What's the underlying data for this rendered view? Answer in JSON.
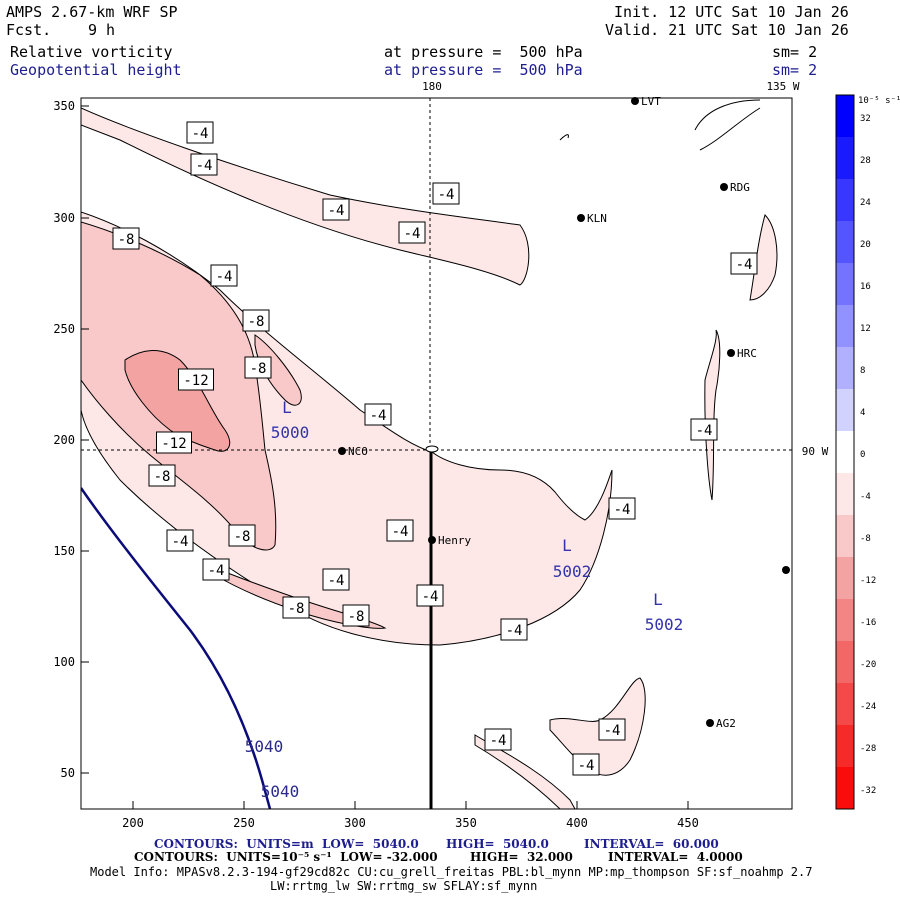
{
  "header": {
    "model": "AMPS 2.67-km WRF SP",
    "fcst_label": "Fcst.",
    "fcst_value": "9 h",
    "init": "Init. 12 UTC Sat 10 Jan 26",
    "valid": "Valid. 21 UTC Sat 10 Jan 26",
    "field1": {
      "name": "Relative vorticity",
      "pressure": "at pressure =  500 hPa",
      "sm": "sm= 2"
    },
    "field2": {
      "name": "Geopotential height",
      "pressure": "at pressure =  500 hPa",
      "sm": "sm= 2"
    }
  },
  "map": {
    "longitude_labels": {
      "top": "180",
      "top_right": "135 W",
      "right": "90 W"
    },
    "x_ticks": [
      "200",
      "250",
      "300",
      "350",
      "400",
      "450"
    ],
    "y_ticks": [
      "350",
      "300",
      "250",
      "200",
      "150",
      "100",
      "50"
    ],
    "stations": [
      {
        "id": "LVT",
        "label": "LVT"
      },
      {
        "id": "RDG",
        "label": "RDG"
      },
      {
        "id": "KLN",
        "label": "KLN"
      },
      {
        "id": "HRC",
        "label": "HRC"
      },
      {
        "id": "NCO",
        "label": "NCO"
      },
      {
        "id": "Henry",
        "label": "Henry"
      },
      {
        "id": "AG2",
        "label": "AG2"
      }
    ],
    "contour_labels": [
      {
        "text": "-4"
      },
      {
        "text": "-4"
      },
      {
        "text": "-4"
      },
      {
        "text": "-4"
      },
      {
        "text": "-4"
      },
      {
        "text": "-8"
      },
      {
        "text": "-4"
      },
      {
        "text": "-8"
      },
      {
        "text": "-8"
      },
      {
        "text": "-12"
      },
      {
        "text": "-12"
      },
      {
        "text": "-8"
      },
      {
        "text": "-4"
      },
      {
        "text": "-4"
      },
      {
        "text": "-4"
      },
      {
        "text": "-8"
      },
      {
        "text": "-4"
      },
      {
        "text": "-4"
      },
      {
        "text": "-4"
      },
      {
        "text": "-4"
      },
      {
        "text": "-8"
      },
      {
        "text": "-8"
      },
      {
        "text": "-4"
      },
      {
        "text": "-4"
      },
      {
        "text": "-4"
      },
      {
        "text": "-4"
      },
      {
        "text": "-4"
      },
      {
        "text": "-4"
      }
    ],
    "lows": [
      {
        "label": "L",
        "value": "5000"
      },
      {
        "label": "L",
        "value": "5002"
      },
      {
        "label": "L",
        "value": "5002"
      }
    ],
    "height_labels": [
      "5040",
      "5040"
    ],
    "colors": {
      "neg_4": "#fde7e7",
      "neg_8": "#f9c8c8",
      "neg_12": "#f4a3a3",
      "height_contour": "#0b0b7a"
    }
  },
  "colorbar": {
    "unit": "10⁻⁵ s⁻¹",
    "ticks": [
      "32",
      "28",
      "24",
      "20",
      "16",
      "12",
      "8",
      "4",
      "0",
      "-4",
      "-8",
      "-12",
      "-16",
      "-20",
      "-24",
      "-28",
      "-32"
    ],
    "colors": [
      "#0000ff",
      "#1a1aff",
      "#3737ff",
      "#5555ff",
      "#7373ff",
      "#9191ff",
      "#b0b0ff",
      "#d2d2ff",
      "#ffffff",
      "#fde7e7",
      "#f9c8c8",
      "#f4a3a3",
      "#f38585",
      "#f36767",
      "#f54848",
      "#f72a2a",
      "#fa0c0c"
    ]
  },
  "footer": {
    "line1_a": "CONTOURS:  UNITS=m  LOW=  5040.0",
    "line1_b": "HIGH=  5040.0",
    "line1_c": "INTERVAL=  60.000",
    "line2_a": "CONTOURS:  UNITS=10⁻⁵ s⁻¹  LOW= -32.000",
    "line2_b": "HIGH=  32.000",
    "line2_c": "INTERVAL=  4.0000",
    "model_info_1": "Model Info: MPASv8.2.3-194-gf29cd82c CU:cu_grell_freitas PBL:bl_mynn MP:mp_thompson SF:sf_noahmp 2.7",
    "model_info_2": "LW:rrtmg_lw SW:rrtmg_sw SFLAY:sf_mynn"
  }
}
